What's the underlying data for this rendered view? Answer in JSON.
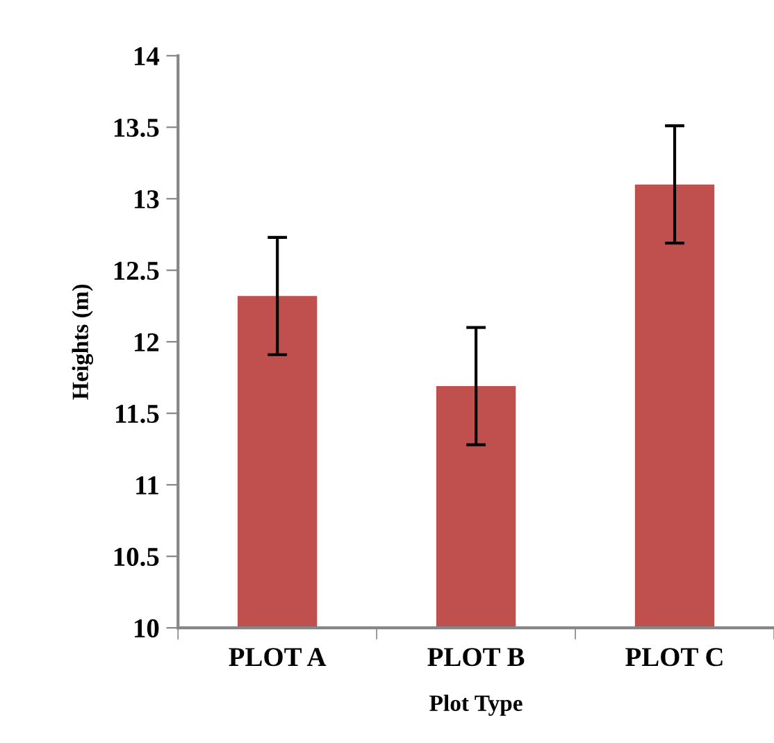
{
  "chart_data": {
    "type": "bar",
    "xlabel": "Plot Type",
    "ylabel": "Heights (m)",
    "categories": [
      "PLOT A",
      "PLOT B",
      "PLOT C"
    ],
    "values": [
      12.32,
      11.69,
      13.1
    ],
    "errors": [
      0.41,
      0.41,
      0.41
    ],
    "color": "#c0504d",
    "ylim": [
      10,
      14
    ],
    "yticks": [
      10,
      10.5,
      11,
      11.5,
      12,
      12.5,
      13,
      13.5,
      14
    ],
    "grid": false,
    "legend": false
  }
}
